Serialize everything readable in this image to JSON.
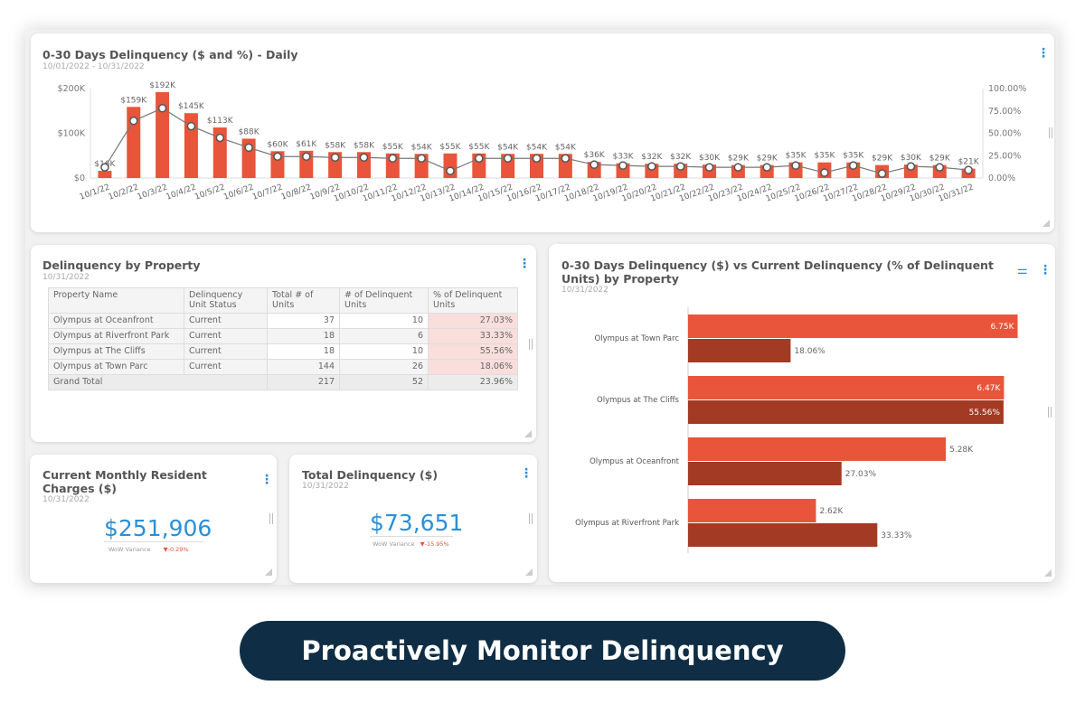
{
  "daily": {
    "title": "0-30 Days Delinquency ($ and %) - Daily",
    "subtitle": "10/01/2022 - 10/31/2022"
  },
  "property": {
    "title": "Delinquency by Property",
    "subtitle": "10/31/2022",
    "columns": [
      "Property Name",
      "Delinquency Unit Status",
      "Total # of Units",
      "# of Delinquent Units",
      "% of Delinquent Units"
    ],
    "rows": [
      [
        "Olympus at Oceanfront",
        "Current",
        "37",
        "10",
        "27.03%"
      ],
      [
        "Olympus at Riverfront Park",
        "Current",
        "18",
        "6",
        "33.33%"
      ],
      [
        "Olympus at The Cliffs",
        "Current",
        "18",
        "10",
        "55.56%"
      ],
      [
        "Olympus at Town Parc",
        "Current",
        "144",
        "26",
        "18.06%"
      ]
    ],
    "total": [
      "Grand Total",
      "217",
      "52",
      "23.96%"
    ]
  },
  "charges": {
    "title": "Current Monthly Resident Charges ($)",
    "subtitle": "10/31/2022",
    "value": "$251,906",
    "variance_label": "WoW Variance",
    "variance": "▼-0.29%"
  },
  "total_delinquency": {
    "title": "Total Delinquency ($)",
    "subtitle": "10/31/2022",
    "value": "$73,651",
    "variance_label": "WoW Variance",
    "variance": "▼-15.95%"
  },
  "compare": {
    "title": "0-30 Days Delinquency ($) vs Current Delinquency (% of Delinquent Units) by Property",
    "subtitle": "10/31/2022"
  },
  "banner": "Proactively Monitor Delinquency",
  "colors": {
    "bar": "#e8553a",
    "bar_dark": "#a33a24",
    "accent": "#2b8fd6",
    "banner": "#0f2e45"
  },
  "chart_data": [
    {
      "type": "bar+line",
      "categories": [
        "10/1/22",
        "10/2/22",
        "10/3/22",
        "10/4/22",
        "10/5/22",
        "10/6/22",
        "10/7/22",
        "10/8/22",
        "10/9/22",
        "10/10/22",
        "10/11/22",
        "10/12/22",
        "10/13/22",
        "10/14/22",
        "10/15/22",
        "10/16/22",
        "10/17/22",
        "10/18/22",
        "10/19/22",
        "10/20/22",
        "10/21/22",
        "10/22/22",
        "10/23/22",
        "10/24/22",
        "10/25/22",
        "10/26/22",
        "10/27/22",
        "10/28/22",
        "10/29/22",
        "10/30/22",
        "10/31/22"
      ],
      "bar_values": [
        16,
        159,
        192,
        145,
        113,
        88,
        60,
        61,
        58,
        58,
        55,
        54,
        55,
        55,
        54,
        54,
        54,
        36,
        33,
        32,
        32,
        30,
        29,
        29,
        35,
        35,
        35,
        29,
        30,
        29,
        21
      ],
      "bar_labels": [
        "$16K",
        "$159K",
        "$192K",
        "$145K",
        "$113K",
        "$88K",
        "$60K",
        "$61K",
        "$58K",
        "$58K",
        "$55K",
        "$54K",
        "$55K",
        "$55K",
        "$54K",
        "$54K",
        "$54K",
        "$36K",
        "$33K",
        "$32K",
        "$32K",
        "$30K",
        "$29K",
        "$29K",
        "$35K",
        "$35K",
        "$35K",
        "$29K",
        "$30K",
        "$29K",
        "$21K"
      ],
      "line_values": [
        12,
        64,
        78,
        58,
        45,
        34,
        24,
        24,
        23,
        23,
        22,
        22,
        8,
        22,
        22,
        22,
        22,
        15,
        14,
        13,
        13,
        12,
        12,
        12,
        14,
        6,
        14,
        5,
        13,
        12,
        9
      ],
      "y_left": {
        "ticks": [
          "$0",
          "$100K",
          "$200K"
        ],
        "range": [
          0,
          200
        ]
      },
      "y_right": {
        "ticks": [
          "0.00%",
          "25.00%",
          "50.00%",
          "75.00%",
          "100.00%"
        ],
        "range": [
          0,
          100
        ]
      }
    },
    {
      "type": "horizontal-bar",
      "categories": [
        "Olympus at Town Parc",
        "Olympus at The Cliffs",
        "Olympus at Oceanfront",
        "Olympus at Riverfront Park"
      ],
      "series": [
        {
          "values": [
            6.75,
            6.47,
            5.28,
            2.62
          ],
          "labels": [
            "6.75K",
            "6.47K",
            "5.28K",
            "2.62K"
          ]
        },
        {
          "values": [
            18.06,
            55.56,
            27.03,
            33.33
          ],
          "labels": [
            "18.06%",
            "55.56%",
            "27.03%",
            "33.33%"
          ]
        }
      ]
    }
  ]
}
